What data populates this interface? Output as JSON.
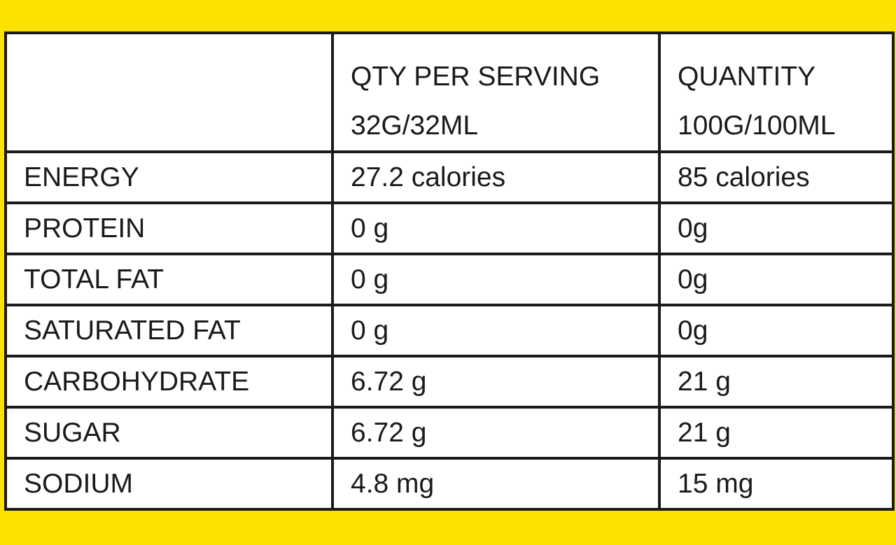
{
  "table": {
    "header": [
      [
        "QTY PER SERVING",
        "32G/32ML"
      ],
      [
        "QUANTITY",
        "100G/100ML"
      ]
    ],
    "rows": [
      [
        "ENERGY",
        "27.2 calories",
        "85 calories"
      ],
      [
        "PROTEIN",
        "0 g",
        "0g"
      ],
      [
        "TOTAL FAT",
        "0 g",
        "0g"
      ],
      [
        "SATURATED FAT",
        "0 g",
        "0g"
      ],
      [
        "CARBOHYDRATE",
        "6.72 g",
        "21 g"
      ],
      [
        "SUGAR",
        "6.72 g",
        "21 g"
      ],
      [
        "SODIUM",
        "4.8 mg",
        "15 mg"
      ]
    ]
  }
}
